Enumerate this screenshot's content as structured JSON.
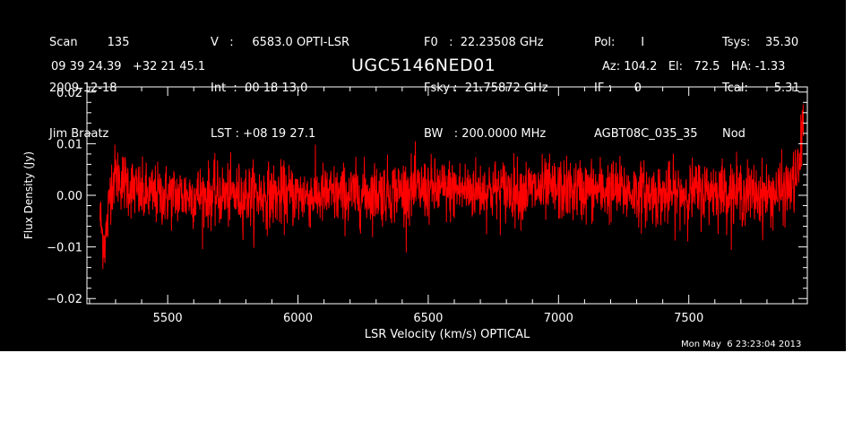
{
  "header": {
    "col1": [
      "Scan        135",
      "2009-12-18",
      "Jim Braatz"
    ],
    "col2": [
      "V   :     6583.0 OPTI-LSR",
      "Int  :  00 18 13.0",
      "LST : +08 19 27.1"
    ],
    "col3": [
      "F0   :  22.23508 GHz",
      "Fsky :  21.75872 GHz",
      "BW   : 200.0000 MHz"
    ],
    "col4": [
      "Pol:       I",
      "IF :      0",
      "AGBT08C_035_35"
    ],
    "col5": [
      "Tsys:    35.30",
      "Tcal:       5.31",
      "Nod"
    ],
    "coords": "09 39 24.39   +32 21 45.1",
    "source": "UGC5146NED01",
    "az_el_ha": "Az: 104.2   El:   72.5   HA: -1.33"
  },
  "footer": {
    "timestamp": "Mon May  6 23:23:04 2013"
  },
  "colors": {
    "background": "#000000",
    "trace": "#ff0000",
    "axes": "#ffffff"
  },
  "chart_data": {
    "type": "line",
    "xlabel": "LSR Velocity (km/s) OPTICAL",
    "ylabel": "Flux Density (Jy)",
    "xlim": [
      5190,
      7955
    ],
    "ylim": [
      -0.021,
      0.021
    ],
    "xticks": [
      5500,
      6000,
      6500,
      7000,
      7500
    ],
    "xtick_labels": [
      "5500",
      "6000",
      "6500",
      "7000",
      "7500"
    ],
    "yticks": [
      -0.02,
      -0.01,
      0.0,
      0.01,
      0.02
    ],
    "ytick_labels": [
      "−0.02",
      "−0.01",
      "0.00",
      "0.01",
      "0.02"
    ],
    "grid": false,
    "series": [
      {
        "color": "#ff0000",
        "x_range": [
          5240,
          7940
        ],
        "noise_rms": 0.003,
        "points": [
          [
            5240,
            -0.004
          ],
          [
            5250,
            -0.008
          ],
          [
            5260,
            -0.009
          ],
          [
            5270,
            -0.005
          ],
          [
            5280,
            0.002
          ],
          [
            5300,
            0.004
          ],
          [
            5400,
            0.0
          ],
          [
            5600,
            0.0
          ],
          [
            5800,
            0.0
          ],
          [
            6000,
            0.0
          ],
          [
            6200,
            0.0
          ],
          [
            6400,
            0.001
          ],
          [
            6600,
            0.001
          ],
          [
            6800,
            0.001
          ],
          [
            7000,
            0.001
          ],
          [
            7200,
            0.001
          ],
          [
            7400,
            0.0
          ],
          [
            7600,
            0.001
          ],
          [
            7800,
            0.0
          ],
          [
            7880,
            0.001
          ],
          [
            7910,
            0.003
          ],
          [
            7925,
            0.006
          ],
          [
            7935,
            0.012
          ],
          [
            7940,
            0.016
          ]
        ]
      }
    ]
  }
}
